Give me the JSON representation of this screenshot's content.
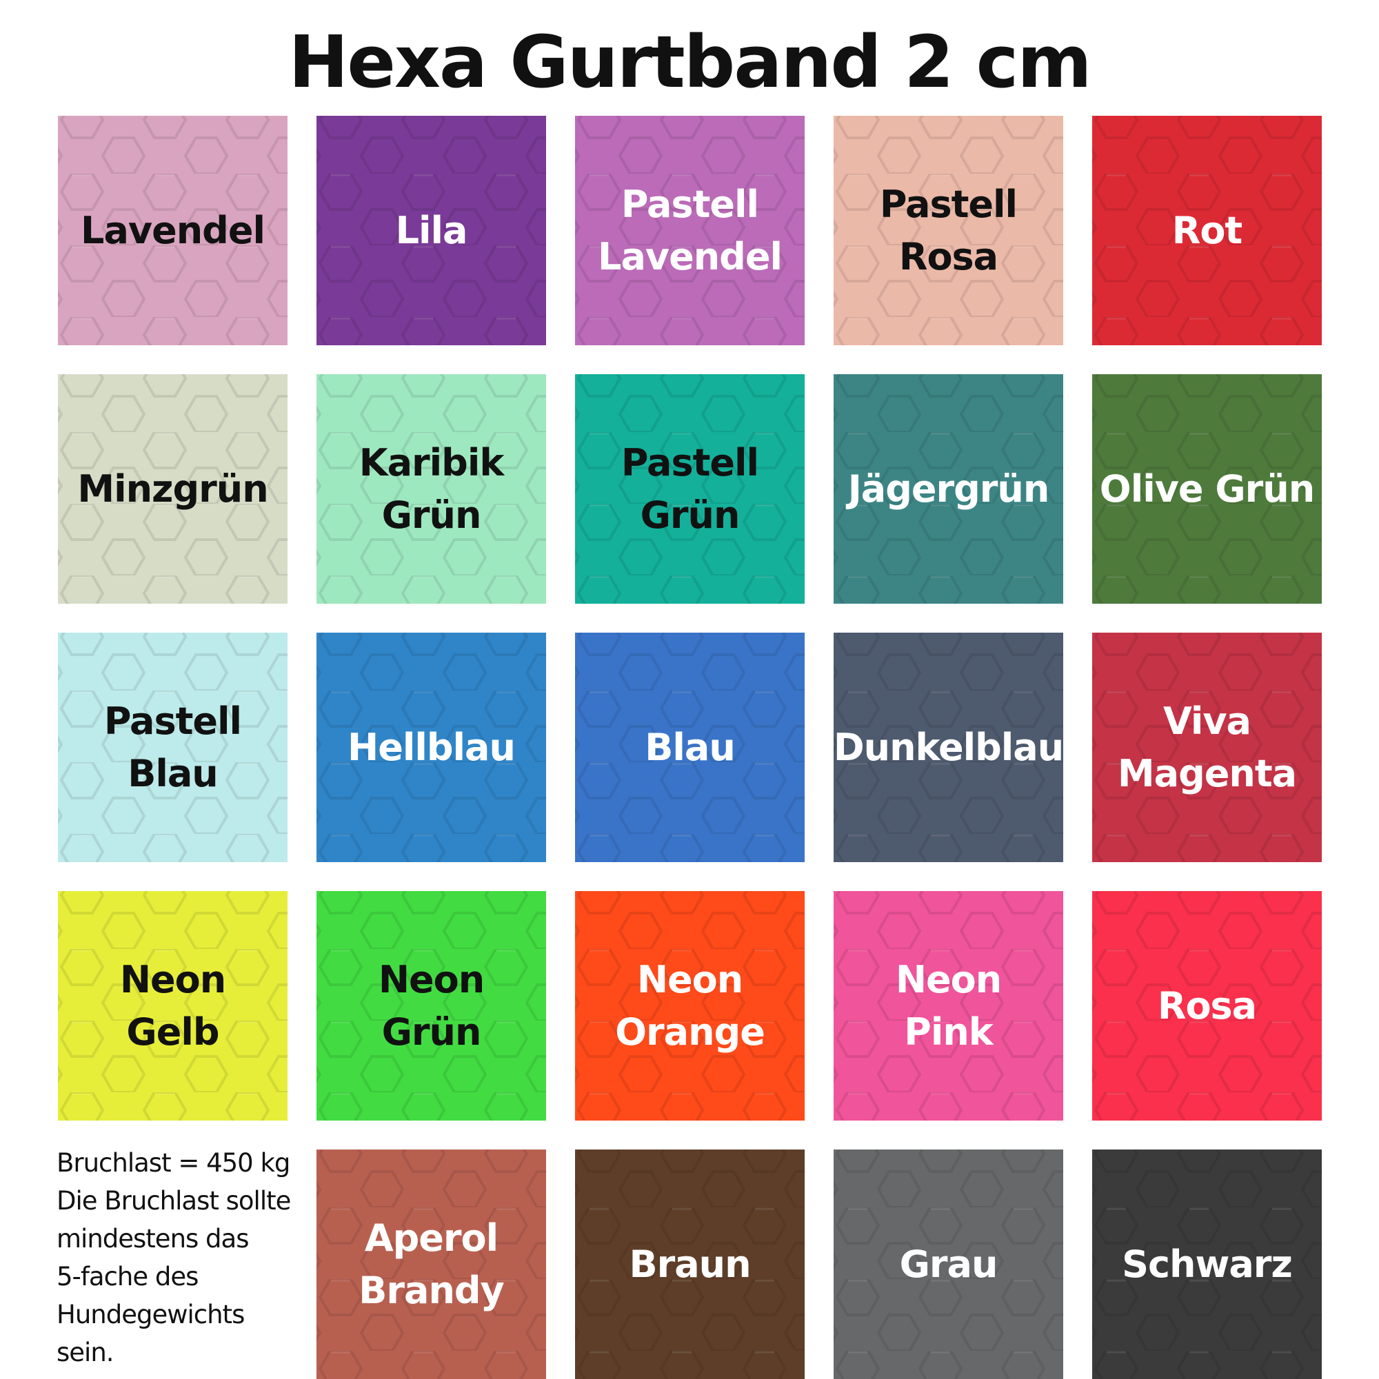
{
  "title": "Hexa Gurtband 2 cm",
  "swatches": [
    {
      "label": "Lavendel",
      "color": "#d9a4bf",
      "text": "#111111"
    },
    {
      "label": "Lila",
      "color": "#7a3a98",
      "text": "#ffffff"
    },
    {
      "label": "Pastell\nLavendel",
      "color": "#bb6bb8",
      "text": "#ffffff"
    },
    {
      "label": "Pastell\nRosa",
      "color": "#ebb9a8",
      "text": "#111111"
    },
    {
      "label": "Rot",
      "color": "#dc2a35",
      "text": "#ffffff"
    },
    {
      "label": "Minzgrün",
      "color": "#d6dcc6",
      "text": "#111111"
    },
    {
      "label": "Karibik\nGrün",
      "color": "#9ee8c0",
      "text": "#111111"
    },
    {
      "label": "Pastell\nGrün",
      "color": "#14b09a",
      "text": "#111111"
    },
    {
      "label": "Jägergrün",
      "color": "#3d8585",
      "text": "#ffffff"
    },
    {
      "label": "Olive Grün",
      "color": "#4e7a3c",
      "text": "#ffffff"
    },
    {
      "label": "Pastell\nBlau",
      "color": "#bdeaea",
      "text": "#111111"
    },
    {
      "label": "Hellblau",
      "color": "#2f85c8",
      "text": "#ffffff"
    },
    {
      "label": "Blau",
      "color": "#3a74c8",
      "text": "#ffffff"
    },
    {
      "label": "Dunkelblau",
      "color": "#4e5a6e",
      "text": "#ffffff"
    },
    {
      "label": "Viva\nMagenta",
      "color": "#c43346",
      "text": "#ffffff"
    },
    {
      "label": "Neon\nGelb",
      "color": "#e6ee3a",
      "text": "#111111"
    },
    {
      "label": "Neon\nGrün",
      "color": "#42dc42",
      "text": "#111111"
    },
    {
      "label": "Neon\nOrange",
      "color": "#ff4a1a",
      "text": "#ffffff"
    },
    {
      "label": "Neon\nPink",
      "color": "#f0549a",
      "text": "#ffffff"
    },
    {
      "label": "Rosa",
      "color": "#fa304c",
      "text": "#ffffff"
    },
    null,
    {
      "label": "Aperol\nBrandy",
      "color": "#b86050",
      "text": "#ffffff"
    },
    {
      "label": "Braun",
      "color": "#5e3e28",
      "text": "#ffffff"
    },
    {
      "label": "Grau",
      "color": "#66686a",
      "text": "#ffffff"
    },
    {
      "label": "Schwarz",
      "color": "#3a3b3a",
      "text": "#ffffff"
    }
  ],
  "info": [
    "Bruchlast = 450 kg",
    "Die Bruchlast sollte",
    "mindestens das",
    "5-fache des",
    "Hundegewichts",
    "sein."
  ]
}
